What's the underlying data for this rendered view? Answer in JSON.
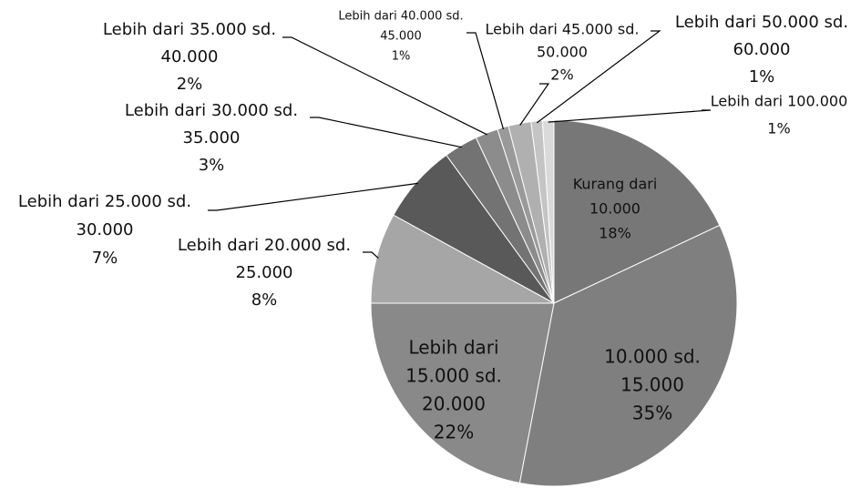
{
  "chart_data": {
    "type": "pie",
    "categories": [
      [
        "Kurang dari",
        "10.000"
      ],
      [
        "10.000 sd.",
        "15.000"
      ],
      [
        "Lebih dari",
        "15.000 sd.",
        "20.000"
      ],
      [
        "Lebih dari 20.000 sd.",
        "25.000"
      ],
      [
        "Lebih dari 25.000 sd.",
        "30.000"
      ],
      [
        "Lebih dari 30.000 sd.",
        "35.000"
      ],
      [
        "Lebih dari 35.000 sd.",
        "40.000"
      ],
      [
        "Lebih dari 40.000 sd.",
        "45.000"
      ],
      [
        "Lebih dari 45.000 sd.",
        "50.000"
      ],
      [
        "Lebih dari 50.000 sd.",
        "60.000"
      ],
      [
        "Lebih dari 100.000"
      ]
    ],
    "values": [
      18,
      35,
      22,
      8,
      7,
      3,
      2,
      1,
      2,
      1,
      1
    ],
    "value_labels": [
      "18%",
      "35%",
      "22%",
      "8%",
      "7%",
      "3%",
      "2%",
      "1%",
      "2%",
      "1%",
      "1%"
    ],
    "colors": [
      "#777777",
      "#7f7f7f",
      "#898989",
      "#a6a6a6",
      "#595959",
      "#737373",
      "#8c8c8c",
      "#9a9a9a",
      "#b0b0b0",
      "#c4c4c4",
      "#dadada"
    ]
  }
}
